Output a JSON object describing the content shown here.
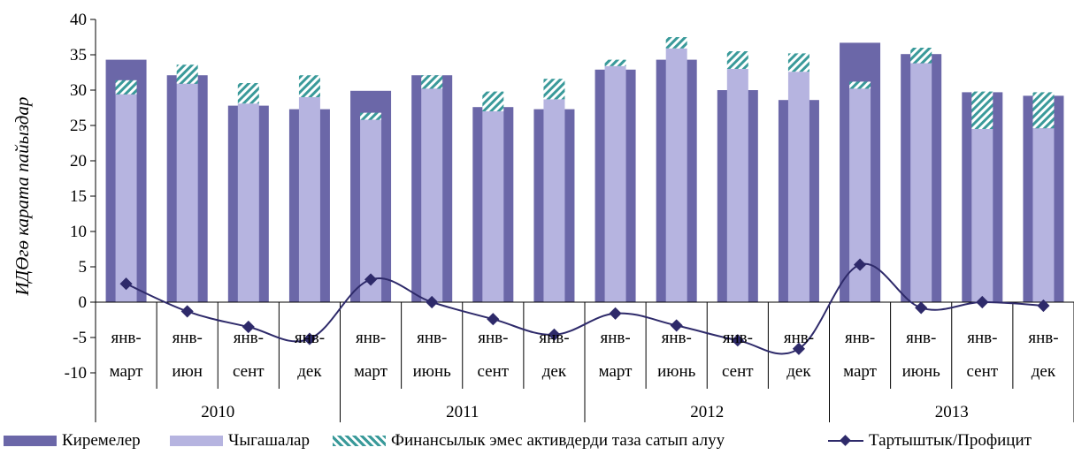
{
  "chart_data": {
    "type": "bar",
    "ylabel": "ИДӨгө карата пайыздар",
    "ylim": [
      -10,
      40
    ],
    "yticks": [
      -10,
      -5,
      0,
      5,
      10,
      15,
      20,
      25,
      30,
      35,
      40
    ],
    "grid": false,
    "legend_position": "bottom",
    "categories": [
      [
        "янв-",
        "март"
      ],
      [
        "янв-",
        "июн"
      ],
      [
        "янв-",
        "сент"
      ],
      [
        "янв-",
        "дек"
      ],
      [
        "янв-",
        "март"
      ],
      [
        "янв-",
        "июнь"
      ],
      [
        "янв-",
        "сент"
      ],
      [
        "янв-",
        "дек"
      ],
      [
        "янв-",
        "март"
      ],
      [
        "янв-",
        "июнь"
      ],
      [
        "янв-",
        "сент"
      ],
      [
        "янв-",
        "дек"
      ],
      [
        "янв-",
        "март"
      ],
      [
        "янв-",
        "июнь"
      ],
      [
        "янв-",
        "сент"
      ],
      [
        "янв-",
        "дек"
      ]
    ],
    "years": [
      "2010",
      "2011",
      "2012",
      "2013"
    ],
    "series": [
      {
        "name": "Киремелер",
        "type": "bar",
        "color": "#6b67a8",
        "values": [
          34.3,
          32.1,
          27.8,
          27.3,
          29.9,
          32.1,
          27.6,
          27.3,
          32.9,
          34.3,
          30.0,
          28.6,
          36.7,
          35.1,
          29.7,
          29.2
        ]
      },
      {
        "name": "Чыгашалар",
        "type": "bar",
        "color": "#b6b4e0",
        "values": [
          29.4,
          30.9,
          28.1,
          29.0,
          25.8,
          30.2,
          27.0,
          28.7,
          33.4,
          35.9,
          33.0,
          32.6,
          30.2,
          33.8,
          24.5,
          24.6
        ]
      },
      {
        "name": "Финансылык эмес активдерди таза сатып алуу",
        "type": "bar-stacked-on-Чыгашалар",
        "color": "#3a9a9a",
        "values": [
          2.0,
          2.7,
          2.9,
          3.1,
          1.0,
          1.9,
          2.8,
          2.9,
          0.9,
          1.6,
          2.5,
          2.6,
          1.0,
          2.2,
          5.3,
          5.1
        ]
      },
      {
        "name": "Тартыштык/Профицит",
        "type": "line",
        "color": "#2e2a6a",
        "values": [
          2.6,
          -1.3,
          -3.5,
          -5.2,
          3.2,
          0.0,
          -2.4,
          -4.6,
          -1.6,
          -3.3,
          -5.4,
          -6.6,
          5.3,
          -0.8,
          0.0,
          -0.5
        ]
      }
    ]
  },
  "legend": [
    {
      "label": "Киремелер"
    },
    {
      "label": "Чыгашалар"
    },
    {
      "label": "Финансылык эмес активдерди таза сатып алуу"
    },
    {
      "label": "Тартыштык/Профицит"
    }
  ]
}
